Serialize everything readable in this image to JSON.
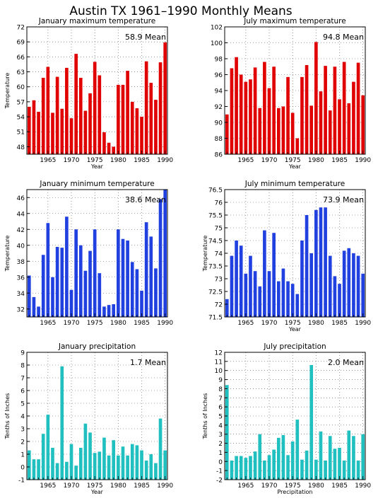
{
  "page": {
    "title": "Austin TX   1961–1990 Monthly Means"
  },
  "chart_data": [
    {
      "id": "jan-max",
      "type": "bar",
      "title": "January maximum temperature",
      "annotation": "58.9 Mean",
      "xlabel": "Year",
      "ylabel": "Temperature",
      "color": "#e00000",
      "xlim": [
        1960.5,
        1990.5
      ],
      "ylim": [
        46.5,
        72
      ],
      "yticks": [
        48,
        51,
        54,
        57,
        60,
        63,
        66,
        69,
        72
      ],
      "yticklabels": [
        "48",
        "51",
        "54",
        "57",
        "60",
        "63",
        "66",
        "69",
        "72"
      ],
      "xticks": [
        1965,
        1970,
        1975,
        1980,
        1985,
        1990
      ],
      "xticklabels": [
        "1965",
        "1970",
        "1975",
        "1980",
        "1985",
        "1990"
      ],
      "grid": true,
      "x": [
        1961,
        1962,
        1963,
        1964,
        1965,
        1966,
        1967,
        1968,
        1969,
        1970,
        1971,
        1972,
        1973,
        1974,
        1975,
        1976,
        1977,
        1978,
        1979,
        1980,
        1981,
        1982,
        1983,
        1984,
        1985,
        1986,
        1987,
        1988,
        1989,
        1990
      ],
      "values": [
        56.0,
        57.3,
        55.0,
        61.8,
        64.0,
        54.8,
        62.0,
        55.6,
        63.8,
        53.7,
        66.6,
        61.8,
        55.2,
        58.7,
        65.0,
        62.3,
        50.9,
        48.8,
        48.0,
        60.4,
        60.4,
        63.2,
        57.0,
        55.7,
        54.0,
        65.1,
        60.8,
        57.4,
        64.9,
        68.9
      ]
    },
    {
      "id": "jul-max",
      "type": "bar",
      "title": "July maximum temperature",
      "annotation": "94.8 Mean",
      "xlabel": "Year",
      "ylabel": "",
      "color": "#e00000",
      "xlim": [
        1960.5,
        1990.5
      ],
      "ylim": [
        86,
        102
      ],
      "yticks": [
        86,
        88,
        90,
        92,
        94,
        96,
        98,
        100,
        102
      ],
      "yticklabels": [
        "86",
        "88",
        "90",
        "92",
        "94",
        "96",
        "98",
        "100",
        "102"
      ],
      "xticks": [
        1965,
        1970,
        1975,
        1980,
        1985,
        1990
      ],
      "xticklabels": [
        "1965",
        "1970",
        "1975",
        "1980",
        "1985",
        "1990"
      ],
      "grid": true,
      "x": [
        1961,
        1962,
        1963,
        1964,
        1965,
        1966,
        1967,
        1968,
        1969,
        1970,
        1971,
        1972,
        1973,
        1974,
        1975,
        1976,
        1977,
        1978,
        1979,
        1980,
        1981,
        1982,
        1983,
        1984,
        1985,
        1986,
        1987,
        1988,
        1989,
        1990
      ],
      "values": [
        91.0,
        96.8,
        98.2,
        96.0,
        95.1,
        95.4,
        96.9,
        91.8,
        97.6,
        94.3,
        97.0,
        91.8,
        92.0,
        95.7,
        91.2,
        88.0,
        95.7,
        97.2,
        92.1,
        100.1,
        93.9,
        97.1,
        91.5,
        97.0,
        92.9,
        97.6,
        92.4,
        95.1,
        97.5,
        93.4
      ]
    },
    {
      "id": "jan-min",
      "type": "bar",
      "title": "January minimum temperature",
      "annotation": "38.6 Mean",
      "xlabel": "",
      "ylabel": "Temperature",
      "color": "#2040e0",
      "xlim": [
        1960.5,
        1990.5
      ],
      "ylim": [
        31,
        47
      ],
      "yticks": [
        32,
        34,
        36,
        38,
        40,
        42,
        44,
        46
      ],
      "yticklabels": [
        "32",
        "34",
        "36",
        "38",
        "40",
        "42",
        "44",
        "46"
      ],
      "xticks": [
        1965,
        1970,
        1975,
        1980,
        1985,
        1990
      ],
      "xticklabels": [
        "1965",
        "1970",
        "1975",
        "1980",
        "1985",
        "1990"
      ],
      "grid": true,
      "x": [
        1961,
        1962,
        1963,
        1964,
        1965,
        1966,
        1967,
        1968,
        1969,
        1970,
        1971,
        1972,
        1973,
        1974,
        1975,
        1976,
        1977,
        1978,
        1979,
        1980,
        1981,
        1982,
        1983,
        1984,
        1985,
        1986,
        1987,
        1988,
        1989,
        1990
      ],
      "values": [
        36.2,
        33.5,
        32.3,
        38.8,
        42.8,
        36.0,
        39.8,
        39.7,
        43.6,
        34.4,
        42.0,
        40.0,
        36.8,
        39.3,
        42.0,
        36.5,
        32.3,
        32.5,
        32.6,
        42.0,
        40.8,
        40.6,
        37.9,
        37.0,
        34.3,
        42.9,
        41.1,
        37.1,
        45.8,
        47.2
      ]
    },
    {
      "id": "jul-min",
      "type": "bar",
      "title": "July minimum temperature",
      "annotation": "73.9 Mean",
      "xlabel": "Year",
      "ylabel": "Temperature",
      "color": "#2040e0",
      "xlim": [
        1960.5,
        1990.5
      ],
      "ylim": [
        71.5,
        76.5
      ],
      "yticks": [
        71.5,
        72,
        72.5,
        73,
        73.5,
        74,
        74.5,
        75,
        75.5,
        76,
        76.5
      ],
      "yticklabels": [
        "71.5",
        "72",
        "72.5",
        "73",
        "73.5",
        "74",
        "74.5",
        "75",
        "75.5",
        "76",
        "76.5"
      ],
      "xticks": [
        1965,
        1970,
        1975,
        1980,
        1985,
        1990
      ],
      "xticklabels": [
        "1965",
        "1970",
        "1975",
        "1980",
        "1985",
        "1990"
      ],
      "grid": true,
      "x": [
        1961,
        1962,
        1963,
        1964,
        1965,
        1966,
        1967,
        1968,
        1969,
        1970,
        1971,
        1972,
        1973,
        1974,
        1975,
        1976,
        1977,
        1978,
        1979,
        1980,
        1981,
        1982,
        1983,
        1984,
        1985,
        1986,
        1987,
        1988,
        1989,
        1990
      ],
      "values": [
        72.2,
        73.9,
        74.5,
        74.3,
        73.2,
        73.9,
        73.3,
        72.7,
        74.9,
        73.3,
        74.8,
        72.9,
        73.4,
        72.9,
        72.8,
        72.4,
        74.5,
        75.5,
        74.0,
        75.7,
        75.8,
        75.8,
        73.9,
        73.1,
        72.8,
        74.1,
        74.2,
        74.0,
        73.9,
        73.2
      ]
    },
    {
      "id": "jan-precip",
      "type": "bar",
      "title": "January precipitation",
      "annotation": "1.7 Mean",
      "xlabel": "Year",
      "ylabel": "Tenths of Inches",
      "color": "#20c0c0",
      "xlim": [
        1960.5,
        1990.5
      ],
      "ylim": [
        -1,
        9
      ],
      "yticks": [
        -1,
        0,
        1,
        2,
        3,
        4,
        5,
        6,
        7,
        8,
        9
      ],
      "yticklabels": [
        "-1",
        "0",
        "1",
        "2",
        "3",
        "4",
        "5",
        "6",
        "7",
        "8",
        "9"
      ],
      "xticks": [
        1965,
        1970,
        1975,
        1980,
        1985,
        1990
      ],
      "xticklabels": [
        "1965",
        "1970",
        "1975",
        "1980",
        "1985",
        "1990"
      ],
      "grid": true,
      "x": [
        1961,
        1962,
        1963,
        1964,
        1965,
        1966,
        1967,
        1968,
        1969,
        1970,
        1971,
        1972,
        1973,
        1974,
        1975,
        1976,
        1977,
        1978,
        1979,
        1980,
        1981,
        1982,
        1983,
        1984,
        1985,
        1986,
        1987,
        1988,
        1989,
        1990
      ],
      "values": [
        1.3,
        0.6,
        0.6,
        2.6,
        4.1,
        1.5,
        0.3,
        7.9,
        0.4,
        1.8,
        0.1,
        1.5,
        3.4,
        2.7,
        1.1,
        1.2,
        2.3,
        0.9,
        2.1,
        0.9,
        1.6,
        0.9,
        1.8,
        1.7,
        1.3,
        0.5,
        1.0,
        0.3,
        3.8,
        1.3
      ]
    },
    {
      "id": "jul-precip",
      "type": "bar",
      "title": "July precipitation",
      "annotation": "2.0 Mean",
      "xlabel": "Precipitation",
      "ylabel": "Tenths of Inches",
      "color": "#20c0c0",
      "xlim": [
        1960.5,
        1990.5
      ],
      "ylim": [
        -2,
        12
      ],
      "yticks": [
        -2,
        -1,
        0,
        1,
        2,
        3,
        4,
        5,
        6,
        7,
        8,
        9,
        10,
        11,
        12
      ],
      "yticklabels": [
        "-2",
        "-1",
        "0",
        "1",
        "2",
        "3",
        "4",
        "5",
        "6",
        "7",
        "8",
        "9",
        "10",
        "11",
        "12"
      ],
      "xticks": [
        1965,
        1970,
        1975,
        1980,
        1985,
        1990
      ],
      "xticklabels": [
        "1965",
        "1970",
        "1975",
        "1980",
        "1985",
        "1990"
      ],
      "grid": true,
      "x": [
        1961,
        1962,
        1963,
        1964,
        1965,
        1966,
        1967,
        1968,
        1969,
        1970,
        1971,
        1972,
        1973,
        1974,
        1975,
        1976,
        1977,
        1978,
        1979,
        1980,
        1981,
        1982,
        1983,
        1984,
        1985,
        1986,
        1987,
        1988,
        1989,
        1990
      ],
      "values": [
        8.4,
        0.1,
        0.6,
        0.6,
        0.4,
        0.6,
        1.1,
        3.0,
        0.1,
        0.7,
        1.3,
        2.6,
        2.9,
        0.7,
        2.2,
        4.6,
        0.2,
        1.2,
        10.6,
        0.2,
        3.3,
        0.1,
        2.8,
        1.4,
        1.5,
        0.1,
        3.4,
        2.8,
        0.1,
        3.0
      ]
    }
  ]
}
